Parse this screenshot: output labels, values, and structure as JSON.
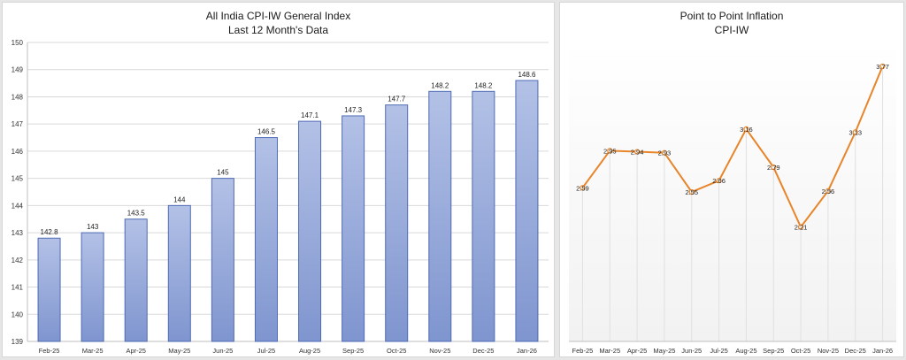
{
  "chart_data": [
    {
      "type": "bar",
      "title": "All India CPI-IW General Index",
      "subtitle": "Last 12 Month's Data",
      "categories": [
        "Feb-25",
        "Mar-25",
        "Apr-25",
        "May-25",
        "Jun-25",
        "Jul-25",
        "Aug-25",
        "Sep-25",
        "Oct-25",
        "Nov-25",
        "Dec-25",
        "Jan-26"
      ],
      "values": [
        142.8,
        143,
        143.5,
        144,
        145,
        146.5,
        147.1,
        147.3,
        147.7,
        148.2,
        148.2,
        148.6
      ],
      "value_labels": [
        "142.8",
        "143",
        "143.5",
        "144",
        "145",
        "146.5",
        "147.1",
        "147.3",
        "147.7",
        "148.2",
        "148.2",
        "148.6"
      ],
      "ylim": [
        139,
        150
      ],
      "yticks": [
        139,
        140,
        141,
        142,
        143,
        144,
        145,
        146,
        147,
        148,
        149,
        150
      ],
      "grid": true,
      "colors": {
        "bar_top": "#b3c1e6",
        "bar_bottom": "#7f95cf",
        "bar_stroke": "#4f6bb5"
      }
    },
    {
      "type": "line",
      "title": "Point to Point Inflation",
      "subtitle": "CPI-IW",
      "categories": [
        "Feb-25",
        "Mar-25",
        "Apr-25",
        "May-25",
        "Jun-25",
        "Jul-25",
        "Aug-25",
        "Sep-25",
        "Oct-25",
        "Nov-25",
        "Dec-25",
        "Jan-26"
      ],
      "values": [
        2.59,
        2.95,
        2.94,
        2.93,
        2.55,
        2.66,
        3.16,
        2.79,
        2.21,
        2.56,
        3.13,
        3.77
      ],
      "value_labels": [
        "2.59",
        "2.95",
        "2.94",
        "2.93",
        "2.55",
        "2.66",
        "3.16",
        "2.79",
        "2.21",
        "2.56",
        "3.13",
        "3.77"
      ],
      "ylim": [
        1.1,
        4.0
      ],
      "grid": true,
      "colors": {
        "line": "#e8852a",
        "marker_fill": "#fff5e8"
      }
    }
  ]
}
